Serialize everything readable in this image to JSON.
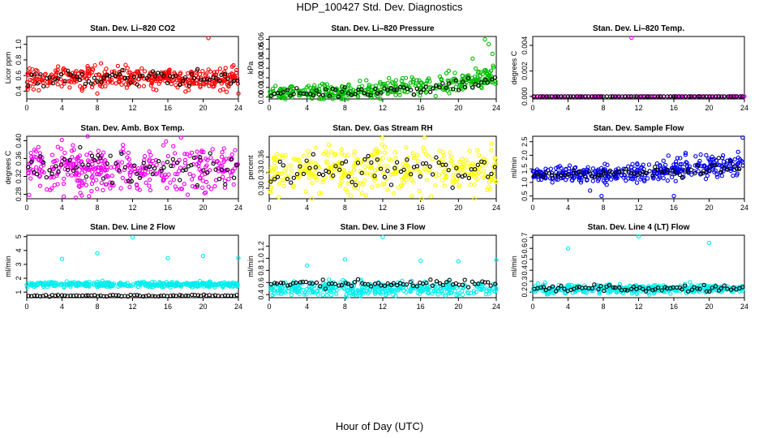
{
  "title": "HDP_100427  Std. Dev. Diagnostics",
  "xlabel": "Hour of Day (UTC)",
  "chart_data": [
    {
      "type": "scatter",
      "title": "Stan. Dev. Li–820 CO2",
      "ylabel": "Licor ppm",
      "color": "#ff0000",
      "xlim": [
        0,
        24
      ],
      "xticks": [
        0,
        4,
        8,
        12,
        16,
        20,
        24
      ],
      "ylim": [
        0.3,
        1.1
      ],
      "yticks": [
        0.4,
        0.6,
        0.8,
        1.0
      ],
      "main": {
        "center": 0.57,
        "spread": 0.07,
        "count": 380
      },
      "black": {
        "center": 0.57,
        "spread": 0.05,
        "count": 70
      },
      "outliers": [
        [
          20.6,
          1.08
        ],
        [
          8.0,
          0.37
        ],
        [
          24.0,
          0.37
        ]
      ]
    },
    {
      "type": "scatter",
      "title": "Stan. Dev. Li–820 Pressure",
      "ylabel": "kPa",
      "color": "#00bb00",
      "xlim": [
        0,
        24
      ],
      "xticks": [
        0,
        4,
        8,
        12,
        16,
        20,
        24
      ],
      "ylim": [
        -0.002,
        0.063
      ],
      "yticks": [
        0.0,
        0.01,
        0.02,
        0.03,
        0.04,
        0.05,
        0.06
      ],
      "main": {
        "center": 0.004,
        "spread": 0.003,
        "count": 380,
        "trend": 0.018
      },
      "black": {
        "center": 0.004,
        "spread": 0.002,
        "count": 70,
        "trend": 0.014
      },
      "outliers": [
        [
          22.8,
          0.06
        ],
        [
          23.2,
          0.055
        ],
        [
          23.6,
          0.045
        ],
        [
          21.5,
          0.04
        ]
      ]
    },
    {
      "type": "scatter",
      "title": "Stan. Dev. Li–820 Temp.",
      "ylabel": "degrees C",
      "color": "#ff00ff",
      "xlim": [
        0,
        24
      ],
      "xticks": [
        0,
        4,
        8,
        12,
        16,
        20,
        24
      ],
      "ylim": [
        -0.0002,
        0.0047
      ],
      "yticks": [
        0.0,
        0.002,
        0.004
      ],
      "main": {
        "center": 0.0,
        "spread": 0.0,
        "count": 120
      },
      "black": {
        "center": 0.0,
        "spread": 0.0,
        "count": 70
      },
      "outliers": [
        [
          11.2,
          0.0046
        ]
      ]
    },
    {
      "type": "scatter",
      "title": "Stan. Dev. Amb. Box Temp.",
      "ylabel": "degrees C",
      "color": "#ee00ee",
      "xlim": [
        0,
        24
      ],
      "xticks": [
        0,
        4,
        8,
        12,
        16,
        20,
        24
      ],
      "ylim": [
        0.27,
        0.41
      ],
      "yticks": [
        0.28,
        0.32,
        0.36,
        0.4
      ],
      "main": {
        "center": 0.338,
        "spread": 0.025,
        "count": 380
      },
      "black": {
        "center": 0.336,
        "spread": 0.02,
        "count": 70
      },
      "outliers": [
        [
          4.2,
          0.275
        ]
      ]
    },
    {
      "type": "scatter",
      "title": "Stan. Dev. Gas Stream RH",
      "ylabel": "percent",
      "color": "#ffff00",
      "xlim": [
        0,
        24
      ],
      "xticks": [
        0,
        4,
        8,
        12,
        16,
        20,
        24
      ],
      "ylim": [
        0.28,
        0.4
      ],
      "yticks": [
        0.3,
        0.33,
        0.36
      ],
      "main": {
        "center": 0.335,
        "spread": 0.022,
        "count": 380
      },
      "black": {
        "center": 0.335,
        "spread": 0.015,
        "count": 70
      },
      "outliers": [
        [
          1.0,
          0.283
        ]
      ]
    },
    {
      "type": "scatter",
      "title": "Stan. Dev. Sample Flow",
      "ylabel": "ml/min",
      "color": "#0000ee",
      "xlim": [
        0,
        24
      ],
      "xticks": [
        0,
        4,
        8,
        12,
        16,
        20,
        24
      ],
      "ylim": [
        0.4,
        2.7
      ],
      "yticks": [
        0.5,
        1.0,
        1.5,
        2.0,
        2.5
      ],
      "main": {
        "center": 1.3,
        "spread": 0.12,
        "count": 380,
        "trend": 0.4
      },
      "black": {
        "center": 1.3,
        "spread": 0.08,
        "count": 70,
        "trend": 0.3
      },
      "outliers": [
        [
          23.8,
          2.65
        ],
        [
          16.0,
          0.5
        ],
        [
          7.8,
          0.5
        ],
        [
          6.5,
          0.7
        ]
      ]
    },
    {
      "type": "scatter",
      "title": "Stan. Dev. Line 2 Flow",
      "ylabel": "ml/min",
      "color": "#00eeee",
      "xlim": [
        0,
        24
      ],
      "xticks": [
        0,
        4,
        8,
        12,
        16,
        20,
        24
      ],
      "ylim": [
        0.6,
        5.1
      ],
      "yticks": [
        1,
        2,
        3,
        4,
        5
      ],
      "main": {
        "center": 1.55,
        "spread": 0.09,
        "count": 380
      },
      "black": {
        "center": 0.75,
        "spread": 0.03,
        "count": 70
      },
      "outliers": [
        [
          4.0,
          3.4
        ],
        [
          8.0,
          3.8
        ],
        [
          12.0,
          4.95
        ],
        [
          16.0,
          3.45
        ],
        [
          20.0,
          3.6
        ],
        [
          24.0,
          3.45
        ]
      ]
    },
    {
      "type": "scatter",
      "title": "Stan. Dev. Line 3 Flow",
      "ylabel": "ml/min",
      "color": "#00eeee",
      "xlim": [
        0,
        24
      ],
      "xticks": [
        0,
        4,
        8,
        12,
        16,
        20,
        24
      ],
      "ylim": [
        0.35,
        1.38
      ],
      "yticks": [
        0.4,
        0.6,
        0.8,
        1.0,
        1.2
      ],
      "main": {
        "center": 0.5,
        "spread": 0.06,
        "count": 380
      },
      "black": {
        "center": 0.58,
        "spread": 0.03,
        "count": 70
      },
      "outliers": [
        [
          4.0,
          0.88
        ],
        [
          8.0,
          0.98
        ],
        [
          12.0,
          1.35
        ],
        [
          16.0,
          0.96
        ],
        [
          20.0,
          0.95
        ],
        [
          24.0,
          0.97
        ]
      ]
    },
    {
      "type": "scatter",
      "title": "Stan. Dev. Line 4 (LT) Flow",
      "ylabel": "ml/min",
      "color": "#00eeee",
      "xlim": [
        0,
        24
      ],
      "xticks": [
        0,
        4,
        8,
        12,
        16,
        20,
        24
      ],
      "ylim": [
        0.15,
        0.72
      ],
      "yticks": [
        0.2,
        0.3,
        0.4,
        0.5,
        0.6,
        0.7
      ],
      "main": {
        "center": 0.23,
        "spread": 0.02,
        "count": 380
      },
      "black": {
        "center": 0.235,
        "spread": 0.015,
        "count": 70
      },
      "outliers": [
        [
          4.0,
          0.6
        ],
        [
          12.0,
          0.71
        ],
        [
          20.0,
          0.65
        ]
      ]
    }
  ]
}
